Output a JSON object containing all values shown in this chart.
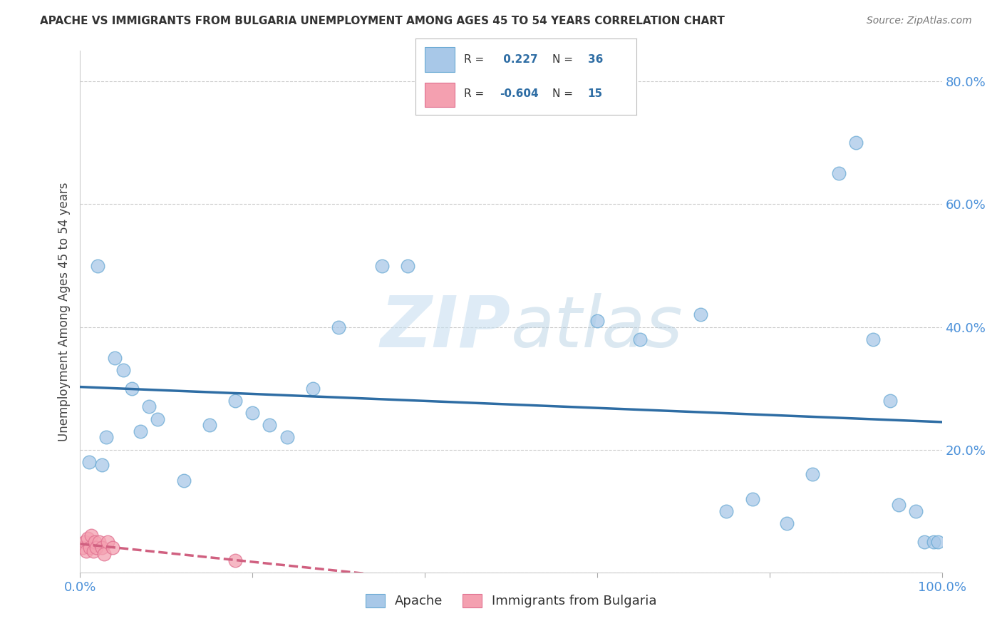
{
  "title": "APACHE VS IMMIGRANTS FROM BULGARIA UNEMPLOYMENT AMONG AGES 45 TO 54 YEARS CORRELATION CHART",
  "source": "Source: ZipAtlas.com",
  "ylabel": "Unemployment Among Ages 45 to 54 years",
  "xlim": [
    0.0,
    1.0
  ],
  "ylim": [
    0.0,
    0.85
  ],
  "apache_R": 0.227,
  "apache_N": 36,
  "bulgaria_R": -0.604,
  "bulgaria_N": 15,
  "apache_color": "#a8c8e8",
  "apache_edge_color": "#6aaad4",
  "apache_line_color": "#2e6da4",
  "bulgaria_color": "#f4a0b0",
  "bulgaria_edge_color": "#e07090",
  "bulgaria_line_color": "#d06080",
  "watermark_color": "#ddeeff",
  "tick_color": "#4a90d9",
  "grid_color": "#cccccc",
  "background_color": "#ffffff",
  "apache_scatter_x": [
    0.02,
    0.01,
    0.025,
    0.03,
    0.04,
    0.05,
    0.06,
    0.07,
    0.08,
    0.09,
    0.12,
    0.15,
    0.18,
    0.2,
    0.22,
    0.24,
    0.27,
    0.3,
    0.35,
    0.38,
    0.6,
    0.65,
    0.72,
    0.75,
    0.78,
    0.82,
    0.85,
    0.88,
    0.9,
    0.92,
    0.94,
    0.95,
    0.97,
    0.98,
    0.99,
    0.995
  ],
  "apache_scatter_y": [
    0.5,
    0.18,
    0.175,
    0.22,
    0.35,
    0.33,
    0.3,
    0.23,
    0.27,
    0.25,
    0.15,
    0.24,
    0.28,
    0.26,
    0.24,
    0.22,
    0.3,
    0.4,
    0.5,
    0.5,
    0.41,
    0.38,
    0.42,
    0.1,
    0.12,
    0.08,
    0.16,
    0.65,
    0.7,
    0.38,
    0.28,
    0.11,
    0.1,
    0.05,
    0.05,
    0.05
  ],
  "bulgaria_scatter_x": [
    0.003,
    0.005,
    0.007,
    0.009,
    0.011,
    0.013,
    0.015,
    0.017,
    0.019,
    0.022,
    0.025,
    0.028,
    0.032,
    0.038,
    0.18
  ],
  "bulgaria_scatter_y": [
    0.04,
    0.05,
    0.035,
    0.055,
    0.04,
    0.06,
    0.035,
    0.05,
    0.04,
    0.05,
    0.04,
    0.03,
    0.05,
    0.04,
    0.02
  ]
}
